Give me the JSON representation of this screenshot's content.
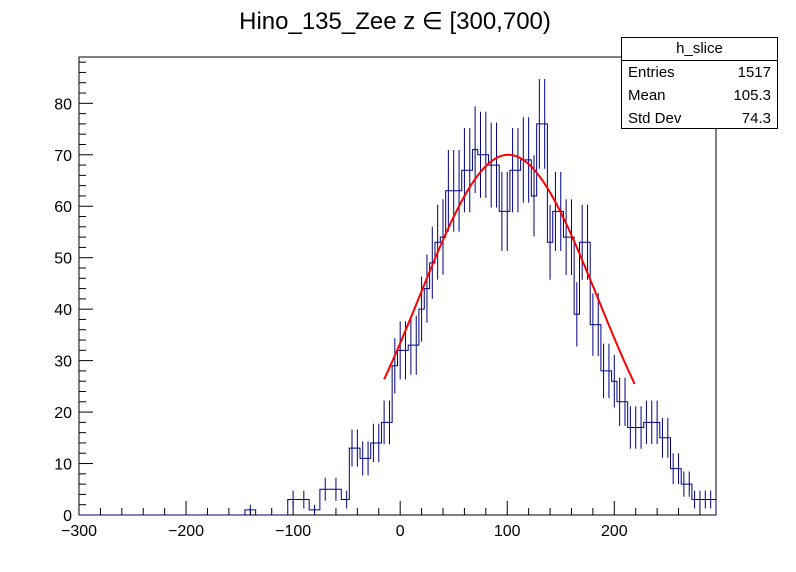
{
  "chart_data": {
    "type": "histogram",
    "title": "Hino_135_Zee z  ∈ [300,700)",
    "xlim": [
      -300,
      295
    ],
    "ylim": [
      0,
      89
    ],
    "bin_width": 10,
    "x_ticks": [
      -300,
      -200,
      -100,
      0,
      100,
      200
    ],
    "x_tick_labels": [
      "−300",
      "−200",
      "−100",
      "0",
      "100",
      "200"
    ],
    "y_ticks": [
      0,
      10,
      20,
      30,
      40,
      50,
      60,
      70,
      80
    ],
    "y_tick_labels": [
      "0",
      "10",
      "20",
      "30",
      "40",
      "50",
      "60",
      "70",
      "80"
    ],
    "series": [
      {
        "name": "h_slice",
        "color": "#000080",
        "bin_centers": [
          -140,
          -100,
          -90,
          -80,
          -70,
          -60,
          -50,
          -45,
          -40,
          -35,
          -30,
          -25,
          -20,
          -15,
          -10,
          -5,
          0,
          5,
          10,
          15,
          20,
          25,
          30,
          35,
          40,
          45,
          50,
          55,
          60,
          65,
          70,
          75,
          80,
          85,
          90,
          95,
          100,
          105,
          110,
          115,
          120,
          125,
          130,
          135,
          140,
          145,
          150,
          155,
          160,
          165,
          170,
          175,
          180,
          185,
          190,
          195,
          200,
          205,
          210,
          215,
          220,
          225,
          230,
          235,
          240,
          245,
          250,
          255,
          260,
          265,
          270,
          275,
          280,
          285,
          290
        ],
        "counts": [
          1,
          3,
          3,
          1,
          5,
          5,
          3,
          13,
          13,
          11,
          11,
          14,
          14,
          18,
          18,
          29,
          32,
          32,
          33,
          33,
          40,
          44,
          49,
          53,
          54,
          63,
          63,
          63,
          67,
          67,
          71,
          70,
          70,
          68,
          68,
          59,
          59,
          67,
          67,
          69,
          69,
          62,
          76,
          76,
          53,
          59,
          59,
          54,
          54,
          39,
          53,
          53,
          37,
          37,
          28,
          28,
          26,
          22,
          22,
          17,
          17,
          17,
          18,
          18,
          18,
          15,
          15,
          9,
          9,
          6,
          6,
          3,
          3,
          3,
          3
        ]
      },
      {
        "name": "fit",
        "type": "gaussian-fit",
        "color": "#ff0000",
        "amplitude": 70,
        "mean": 101,
        "sigma": 83,
        "x_range": [
          -15,
          220
        ]
      }
    ]
  },
  "stats_box": {
    "title": "h_slice",
    "rows": [
      {
        "label": "Entries",
        "value": "1517"
      },
      {
        "label": "Mean",
        "value": "105.3"
      },
      {
        "label": "Std Dev",
        "value": "74.3"
      }
    ]
  }
}
